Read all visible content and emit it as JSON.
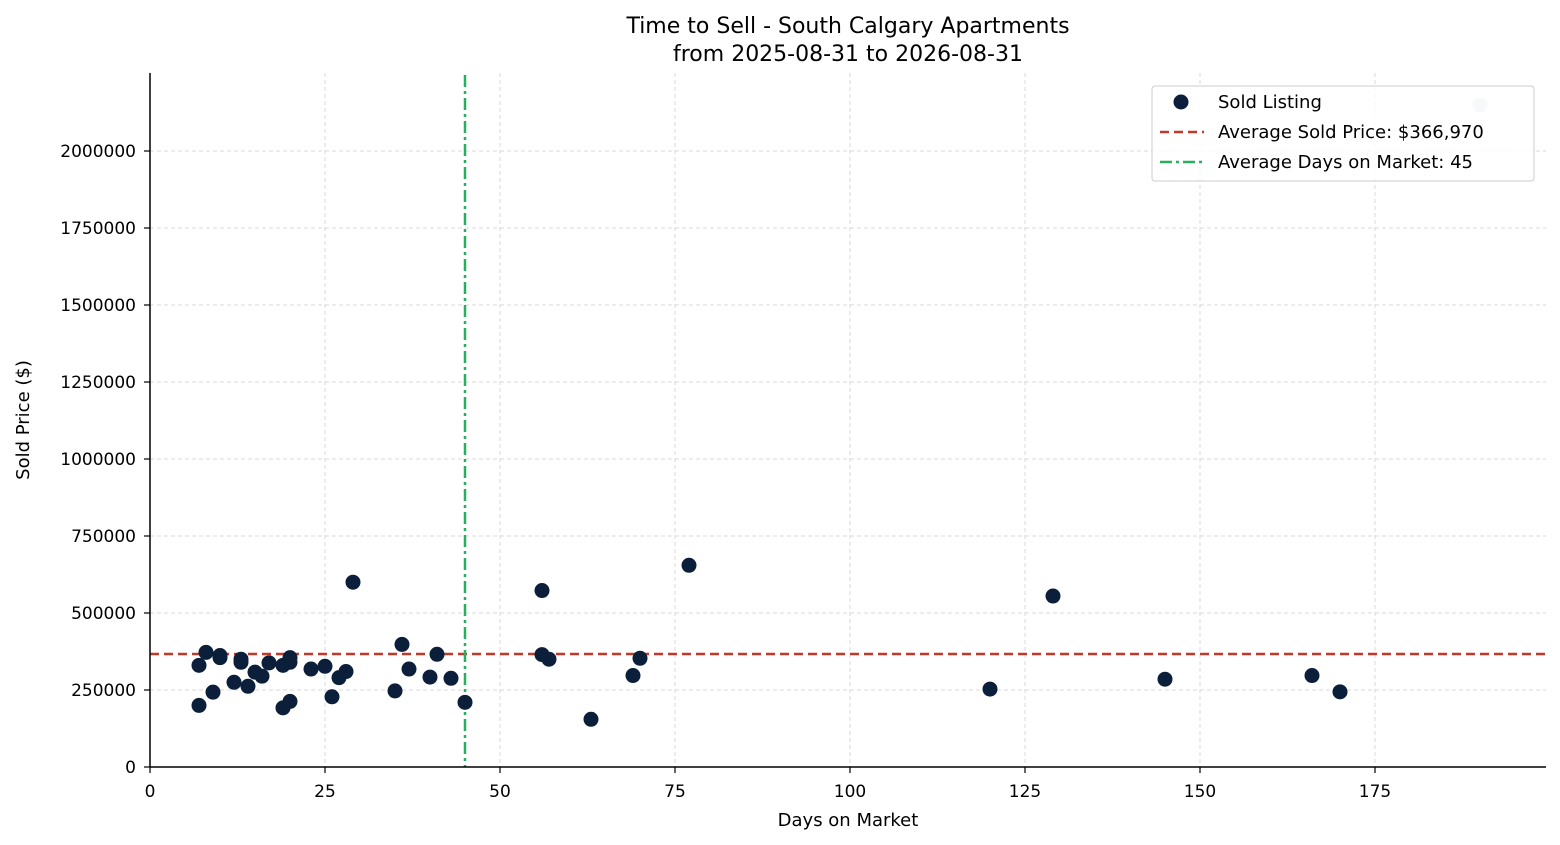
{
  "chart_data": {
    "type": "scatter",
    "title": "Time to Sell - South Calgary Apartments",
    "subtitle": "from 2025-08-31 to 2026-08-31",
    "xlabel": "Days on Market",
    "ylabel": "Sold Price ($)",
    "xlim": [
      0,
      199
    ],
    "ylim": [
      0,
      2250000
    ],
    "xticks": [
      0,
      25,
      50,
      75,
      100,
      125,
      150,
      175
    ],
    "yticks": [
      0,
      250000,
      500000,
      750000,
      1000000,
      1250000,
      1500000,
      1750000,
      2000000
    ],
    "grid": true,
    "legend_position": "top-right",
    "colors": {
      "points": "#0b1f3a",
      "outlier_point": "#c6ccd6",
      "avg_price_line": "#c0392b",
      "avg_days_line": "#27ae60",
      "grid": "#d9d9d9"
    },
    "series": [
      {
        "name": "Sold Listing",
        "points": [
          [
            7,
            330000
          ],
          [
            7,
            200000
          ],
          [
            8,
            372000
          ],
          [
            9,
            243000
          ],
          [
            10,
            355000
          ],
          [
            10,
            362000
          ],
          [
            12,
            275000
          ],
          [
            13,
            350000
          ],
          [
            13,
            340000
          ],
          [
            14,
            262000
          ],
          [
            15,
            308000
          ],
          [
            16,
            295000
          ],
          [
            17,
            338000
          ],
          [
            19,
            330000
          ],
          [
            19,
            192000
          ],
          [
            20,
            340000
          ],
          [
            20,
            355000
          ],
          [
            20,
            213000
          ],
          [
            23,
            318000
          ],
          [
            25,
            327000
          ],
          [
            26,
            228000
          ],
          [
            27,
            290000
          ],
          [
            28,
            310000
          ],
          [
            29,
            600000
          ],
          [
            35,
            247000
          ],
          [
            36,
            398000
          ],
          [
            37,
            318000
          ],
          [
            40,
            292000
          ],
          [
            41,
            366000
          ],
          [
            43,
            288000
          ],
          [
            45,
            210000
          ],
          [
            56,
            365000
          ],
          [
            56,
            573000
          ],
          [
            57,
            350000
          ],
          [
            63,
            155000
          ],
          [
            69,
            297000
          ],
          [
            70,
            353000
          ],
          [
            77,
            655000
          ],
          [
            120,
            253000
          ],
          [
            129,
            555000
          ],
          [
            145,
            285000
          ],
          [
            166,
            297000
          ],
          [
            170,
            244000
          ]
        ]
      }
    ],
    "outliers": [
      [
        190,
        2150000
      ]
    ],
    "reference_lines": {
      "avg_price": {
        "label": "Average Sold Price: $366,970",
        "value": 366970
      },
      "avg_days": {
        "label": "Average Days on Market: 45",
        "value": 45
      }
    }
  }
}
